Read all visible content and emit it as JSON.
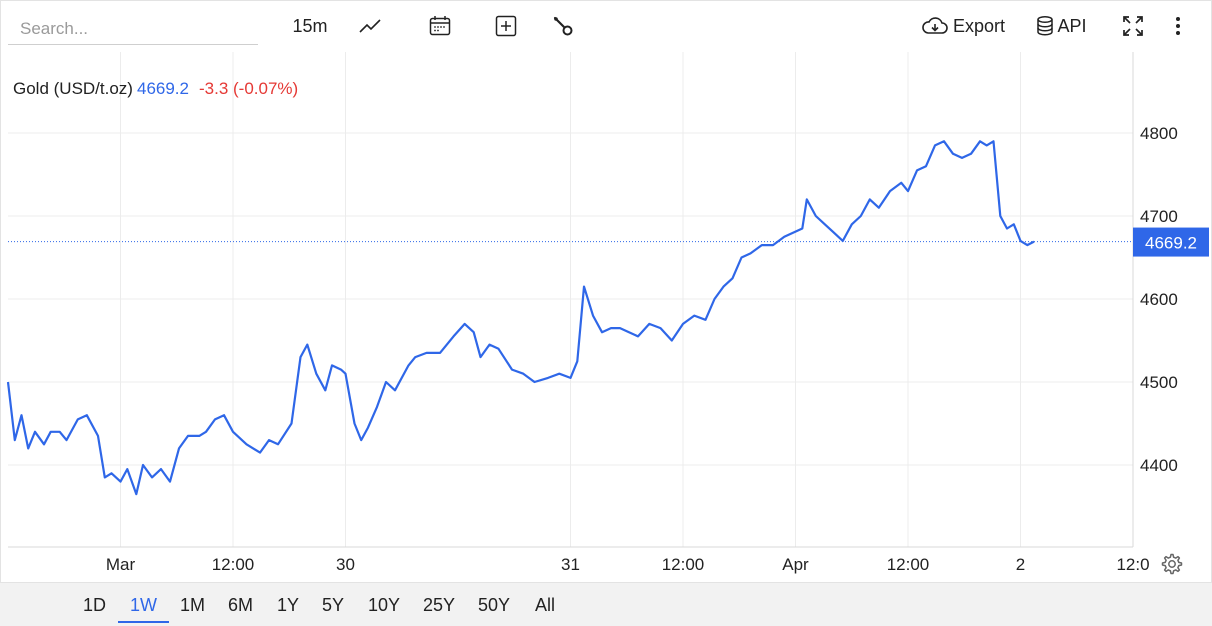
{
  "toolbar": {
    "search_placeholder": "Search...",
    "interval_label": "15m",
    "export_label": "Export",
    "api_label": "API",
    "icons": [
      "line-chart-icon",
      "calendar-icon",
      "add-indicator-icon",
      "wrench-icon",
      "cloud-download-icon",
      "database-icon",
      "fullscreen-icon",
      "more-vertical-icon"
    ]
  },
  "legend": {
    "name": "Gold (USD/t.oz)",
    "price": "4669.2",
    "change": "-3.3 (-0.07%)"
  },
  "price_tag": "4669.2",
  "ranges": {
    "items": [
      "1D",
      "1W",
      "1M",
      "6M",
      "1Y",
      "5Y",
      "10Y",
      "25Y",
      "50Y",
      "All"
    ],
    "active": "1W"
  },
  "colors": {
    "line": "#2f67e8",
    "negative": "#e53935",
    "grid": "#ececec",
    "last_price_tag": "#2f67e8"
  },
  "chart_data": {
    "type": "line",
    "title": "Gold (USD/t.oz)",
    "last_value": 4669.2,
    "ylim": [
      4300,
      4900
    ],
    "y_ticks": [
      4400,
      4500,
      4600,
      4700,
      4800
    ],
    "x_ticks": [
      {
        "label": "Mar",
        "x": 1.0
      },
      {
        "label": "12:00",
        "x": 1.5
      },
      {
        "label": "30",
        "x": 2.0
      },
      {
        "label": "31",
        "x": 3.0
      },
      {
        "label": "12:00",
        "x": 3.5
      },
      {
        "label": "Apr",
        "x": 4.0
      },
      {
        "label": "12:00",
        "x": 4.5
      },
      {
        "label": "2",
        "x": 5.0
      },
      {
        "label": "12:0",
        "x": 5.5
      }
    ],
    "grid": true,
    "series": [
      {
        "values": [
          [
            0.5,
            4500
          ],
          [
            0.53,
            4430
          ],
          [
            0.56,
            4460
          ],
          [
            0.59,
            4420
          ],
          [
            0.62,
            4440
          ],
          [
            0.66,
            4425
          ],
          [
            0.69,
            4440
          ],
          [
            0.73,
            4440
          ],
          [
            0.76,
            4430
          ],
          [
            0.81,
            4455
          ],
          [
            0.85,
            4460
          ],
          [
            0.9,
            4435
          ],
          [
            0.93,
            4385
          ],
          [
            0.96,
            4390
          ],
          [
            1.0,
            4380
          ],
          [
            1.03,
            4395
          ],
          [
            1.07,
            4365
          ],
          [
            1.1,
            4400
          ],
          [
            1.14,
            4385
          ],
          [
            1.18,
            4395
          ],
          [
            1.22,
            4380
          ],
          [
            1.26,
            4420
          ],
          [
            1.3,
            4435
          ],
          [
            1.35,
            4435
          ],
          [
            1.38,
            4440
          ],
          [
            1.42,
            4455
          ],
          [
            1.46,
            4460
          ],
          [
            1.5,
            4440
          ],
          [
            1.56,
            4425
          ],
          [
            1.62,
            4415
          ],
          [
            1.66,
            4430
          ],
          [
            1.7,
            4425
          ],
          [
            1.76,
            4450
          ],
          [
            1.8,
            4530
          ],
          [
            1.83,
            4545
          ],
          [
            1.87,
            4510
          ],
          [
            1.91,
            4490
          ],
          [
            1.94,
            4520
          ],
          [
            1.98,
            4515
          ],
          [
            2.0,
            4510
          ],
          [
            2.04,
            4450
          ],
          [
            2.07,
            4430
          ],
          [
            2.1,
            4445
          ],
          [
            2.14,
            4470
          ],
          [
            2.18,
            4500
          ],
          [
            2.22,
            4490
          ],
          [
            2.28,
            4520
          ],
          [
            2.31,
            4530
          ],
          [
            2.36,
            4535
          ],
          [
            2.42,
            4535
          ],
          [
            2.48,
            4555
          ],
          [
            2.53,
            4570
          ],
          [
            2.57,
            4560
          ],
          [
            2.6,
            4530
          ],
          [
            2.64,
            4545
          ],
          [
            2.68,
            4540
          ],
          [
            2.74,
            4515
          ],
          [
            2.79,
            4510
          ],
          [
            2.84,
            4500
          ],
          [
            2.9,
            4505
          ],
          [
            2.95,
            4510
          ],
          [
            3.0,
            4505
          ],
          [
            3.03,
            4525
          ],
          [
            3.06,
            4615
          ],
          [
            3.1,
            4580
          ],
          [
            3.14,
            4560
          ],
          [
            3.18,
            4565
          ],
          [
            3.22,
            4565
          ],
          [
            3.26,
            4560
          ],
          [
            3.3,
            4555
          ],
          [
            3.35,
            4570
          ],
          [
            3.4,
            4565
          ],
          [
            3.45,
            4550
          ],
          [
            3.5,
            4570
          ],
          [
            3.55,
            4580
          ],
          [
            3.6,
            4575
          ],
          [
            3.64,
            4600
          ],
          [
            3.68,
            4615
          ],
          [
            3.72,
            4625
          ],
          [
            3.76,
            4650
          ],
          [
            3.8,
            4655
          ],
          [
            3.85,
            4665
          ],
          [
            3.9,
            4665
          ],
          [
            3.95,
            4675
          ],
          [
            3.99,
            4680
          ],
          [
            4.03,
            4685
          ],
          [
            4.05,
            4720
          ],
          [
            4.09,
            4700
          ],
          [
            4.13,
            4690
          ],
          [
            4.17,
            4680
          ],
          [
            4.21,
            4670
          ],
          [
            4.25,
            4690
          ],
          [
            4.29,
            4700
          ],
          [
            4.33,
            4720
          ],
          [
            4.37,
            4710
          ],
          [
            4.42,
            4730
          ],
          [
            4.47,
            4740
          ],
          [
            4.5,
            4730
          ],
          [
            4.54,
            4755
          ],
          [
            4.58,
            4760
          ],
          [
            4.62,
            4785
          ],
          [
            4.66,
            4790
          ],
          [
            4.7,
            4775
          ],
          [
            4.74,
            4770
          ],
          [
            4.78,
            4775
          ],
          [
            4.82,
            4790
          ],
          [
            4.85,
            4785
          ],
          [
            4.88,
            4790
          ],
          [
            4.91,
            4700
          ],
          [
            4.94,
            4685
          ],
          [
            4.97,
            4690
          ],
          [
            5.0,
            4670
          ],
          [
            5.03,
            4665
          ],
          [
            5.06,
            4669.2
          ]
        ]
      }
    ]
  }
}
